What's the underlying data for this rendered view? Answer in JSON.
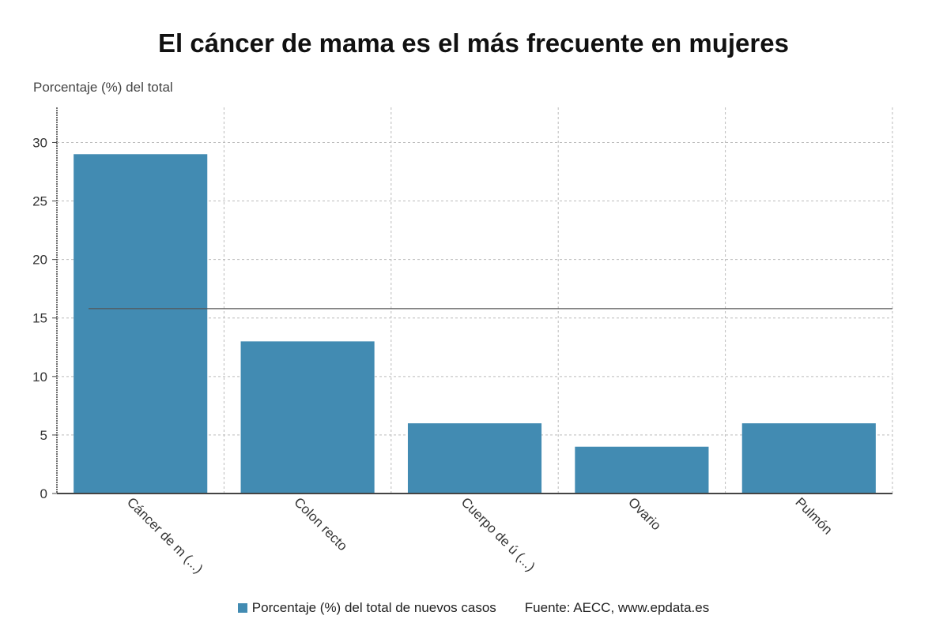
{
  "header": {
    "title": "El cáncer de mama es el más frecuente en mujeres",
    "ylabel": "Porcentaje (%) del total"
  },
  "legend": {
    "series_label": "Porcentaje (%) del total de nuevos casos",
    "source": "Fuente: AECC, www.epdata.es"
  },
  "colors": {
    "bar": "#428bb2",
    "grid": "#bbbbbb",
    "axis": "#444444",
    "reference_line": "#555555"
  },
  "chart_data": {
    "type": "bar",
    "title": "El cáncer de mama es el más frecuente en mujeres",
    "ylabel": "Porcentaje (%) del total",
    "xlabel": "",
    "categories": [
      "Cáncer de m (...)",
      "Colon recto",
      "Cuerpo de ú (...)",
      "Ovario",
      "Pulmón"
    ],
    "series": [
      {
        "name": "Porcentaje (%) del total de nuevos casos",
        "values": [
          29,
          13,
          6,
          4,
          6
        ]
      }
    ],
    "reference_line": 15.8,
    "ylim": [
      0,
      33
    ],
    "yticks": [
      0,
      5,
      10,
      15,
      20,
      25,
      30
    ],
    "grid": true,
    "legend_position": "bottom"
  }
}
